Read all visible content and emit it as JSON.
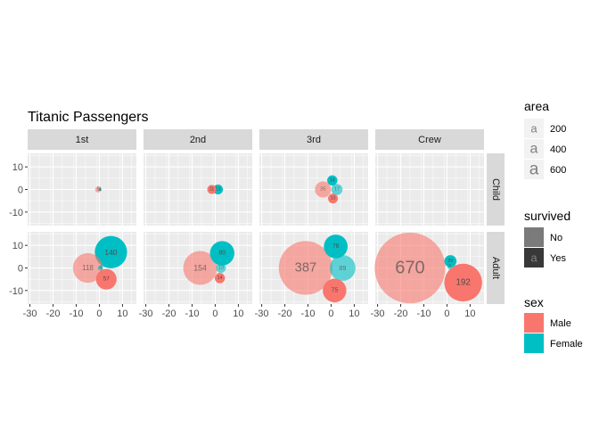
{
  "chart_data": {
    "type": "scatter",
    "title": "Titanic Passengers",
    "xlabel": "",
    "ylabel": "",
    "xlim": [
      -31,
      16
    ],
    "ylim": [
      -16,
      16
    ],
    "x_ticks": [
      -30,
      -20,
      -10,
      0,
      10
    ],
    "y_ticks": [
      -10,
      0,
      10
    ],
    "grid": true,
    "legend_position": "right",
    "columns": [
      "1st",
      "2nd",
      "3rd",
      "Crew"
    ],
    "rows": [
      "Child",
      "Adult"
    ],
    "points": [
      {
        "col": "1st",
        "row": "Child",
        "sex": "Male",
        "survived": "No",
        "x": -0.5,
        "y": 0,
        "n": 5
      },
      {
        "col": "1st",
        "row": "Child",
        "sex": "Female",
        "survived": "Yes",
        "x": 0.3,
        "y": 0,
        "n": 1
      },
      {
        "col": "1st",
        "row": "Adult",
        "sex": "Female",
        "survived": "Yes",
        "x": 5,
        "y": 7,
        "n": 140
      },
      {
        "col": "1st",
        "row": "Adult",
        "sex": "Male",
        "survived": "No",
        "x": -5,
        "y": 0,
        "n": 118
      },
      {
        "col": "1st",
        "row": "Adult",
        "sex": "Male",
        "survived": "Yes",
        "x": 3,
        "y": -5,
        "n": 57
      },
      {
        "col": "1st",
        "row": "Adult",
        "sex": "Female",
        "survived": "No",
        "x": 0.5,
        "y": 0,
        "n": 4
      },
      {
        "col": "2nd",
        "row": "Child",
        "sex": "Male",
        "survived": "Yes",
        "x": -1.5,
        "y": 0,
        "n": 11
      },
      {
        "col": "2nd",
        "row": "Child",
        "sex": "Female",
        "survived": "Yes",
        "x": 1.2,
        "y": 0,
        "n": 13
      },
      {
        "col": "2nd",
        "row": "Adult",
        "sex": "Female",
        "survived": "Yes",
        "x": 3,
        "y": 6.5,
        "n": 80
      },
      {
        "col": "2nd",
        "row": "Adult",
        "sex": "Male",
        "survived": "No",
        "x": -6.5,
        "y": 0,
        "n": 154
      },
      {
        "col": "2nd",
        "row": "Adult",
        "sex": "Female",
        "survived": "No",
        "x": 2.5,
        "y": 0,
        "n": 13
      },
      {
        "col": "2nd",
        "row": "Adult",
        "sex": "Male",
        "survived": "Yes",
        "x": 2,
        "y": -4.5,
        "n": 14
      },
      {
        "col": "3rd",
        "row": "Child",
        "sex": "Female",
        "survived": "Yes",
        "x": 0.5,
        "y": 4,
        "n": 14
      },
      {
        "col": "3rd",
        "row": "Child",
        "sex": "Male",
        "survived": "No",
        "x": -3.5,
        "y": 0,
        "n": 35
      },
      {
        "col": "3rd",
        "row": "Child",
        "sex": "Female",
        "survived": "No",
        "x": 2.5,
        "y": 0,
        "n": 17
      },
      {
        "col": "3rd",
        "row": "Child",
        "sex": "Male",
        "survived": "Yes",
        "x": 0.8,
        "y": -4,
        "n": 13
      },
      {
        "col": "3rd",
        "row": "Adult",
        "sex": "Female",
        "survived": "Yes",
        "x": 2,
        "y": 9.5,
        "n": 76
      },
      {
        "col": "3rd",
        "row": "Adult",
        "sex": "Male",
        "survived": "No",
        "x": -11,
        "y": 0,
        "n": 387
      },
      {
        "col": "3rd",
        "row": "Adult",
        "sex": "Female",
        "survived": "No",
        "x": 5,
        "y": 0,
        "n": 89
      },
      {
        "col": "3rd",
        "row": "Adult",
        "sex": "Male",
        "survived": "Yes",
        "x": 1.5,
        "y": -10,
        "n": 75
      },
      {
        "col": "Crew",
        "row": "Adult",
        "sex": "Male",
        "survived": "No",
        "x": -16,
        "y": 0,
        "n": 670
      },
      {
        "col": "Crew",
        "row": "Adult",
        "sex": "Male",
        "survived": "Yes",
        "x": 7,
        "y": -6.5,
        "n": 192
      },
      {
        "col": "Crew",
        "row": "Adult",
        "sex": "Female",
        "survived": "Yes",
        "x": 1.5,
        "y": 3,
        "n": 20
      },
      {
        "col": "Crew",
        "row": "Adult",
        "sex": "Female",
        "survived": "No",
        "x": 1.2,
        "y": 0.5,
        "n": 3
      }
    ],
    "legends": {
      "area": {
        "title": "area",
        "values": [
          "200",
          "400",
          "600"
        ],
        "glyph": "a"
      },
      "survived": {
        "title": "survived",
        "values": [
          "No",
          "Yes"
        ],
        "glyph": "a"
      },
      "sex": {
        "title": "sex",
        "values": [
          "Male",
          "Female"
        ]
      }
    },
    "colors": {
      "Male": "#F8766D",
      "Female": "#00BFC4",
      "panel_bg": "#EBEBEB",
      "strip_bg": "#D9D9D9",
      "grid": "#FFFFFF",
      "survived_no_alpha": 0.6,
      "survived_yes_alpha": 1.0
    }
  }
}
